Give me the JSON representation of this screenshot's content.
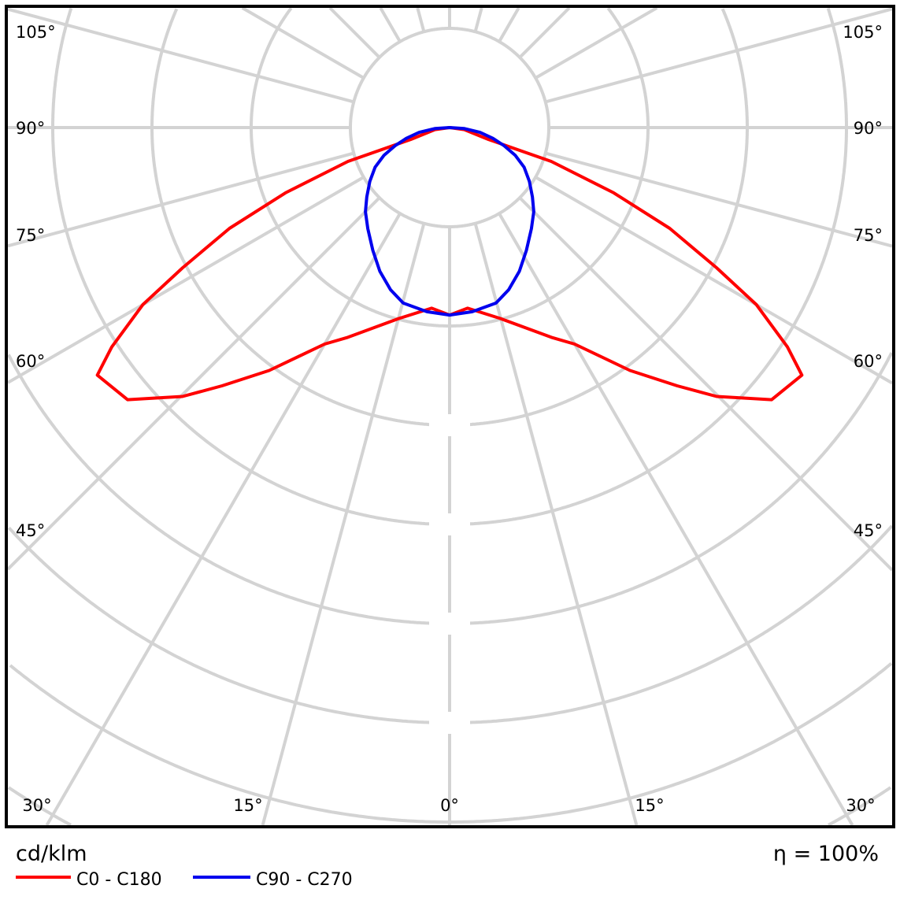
{
  "chart_data": {
    "type": "polar-line",
    "unit_label": "cd/klm",
    "efficiency_label": "η = 100%",
    "angle_ticks_left": [
      "105°",
      "90°",
      "75°",
      "60°",
      "45°"
    ],
    "angle_ticks_right": [
      "105°",
      "90°",
      "75°",
      "60°",
      "45°"
    ],
    "angle_ticks_bottom": [
      "30°",
      "15°",
      "0°",
      "15°",
      "30°"
    ],
    "grid": true,
    "angular_grid_step_deg": 15,
    "legend_placement": "bottom-left",
    "series": [
      {
        "name": "C0 - C180",
        "color": "#ff0000",
        "symmetric": true,
        "gamma_deg": [
          0,
          5.7,
          14.8,
          25.9,
          30,
          36.6,
          41.4,
          44.8,
          49.8,
          54.9,
          57,
          60,
          62.3,
          65.4,
          68.3,
          71.6,
          73,
          82,
          90
        ],
        "intensity": [
          1.89,
          1.83,
          1.99,
          2.35,
          2.52,
          3.05,
          3.47,
          3.82,
          4.25,
          4.34,
          4.06,
          3.57,
          3.04,
          2.44,
          1.78,
          1.08,
          0.41,
          0.15,
          0
        ]
      },
      {
        "name": "C90 - C270",
        "color": "#0000ee",
        "symmetric": true,
        "gamma_deg": [
          0,
          7,
          14.8,
          20,
          25.9,
          32,
          39,
          45,
          50,
          56,
          62,
          67,
          71.6,
          76,
          81,
          86,
          90
        ],
        "intensity": [
          1.89,
          1.87,
          1.83,
          1.74,
          1.61,
          1.46,
          1.31,
          1.2,
          1.09,
          0.97,
          0.85,
          0.72,
          0.58,
          0.45,
          0.31,
          0.15,
          0
        ]
      }
    ]
  }
}
